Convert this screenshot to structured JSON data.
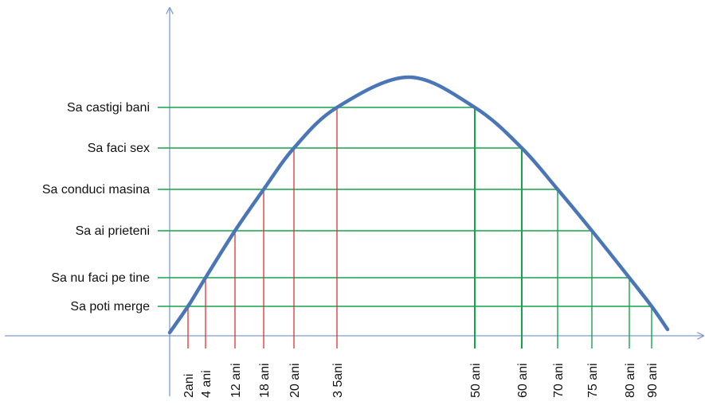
{
  "chart_data": {
    "type": "line",
    "title": "",
    "xlabel": "",
    "ylabel": "",
    "grid": false,
    "curve": {
      "color": "#4a76b8",
      "peak_age": 40
    },
    "colors": {
      "axis": "#7f9ccc",
      "horizontal": "#16a34a",
      "rising_marker": "#e03131",
      "falling_marker": "#16a34a"
    },
    "levels": [
      {
        "label": "Sa poti merge",
        "rising_age": 2,
        "rising_label": "2ani",
        "falling_age": 90,
        "falling_label": "90 ani"
      },
      {
        "label": "Sa nu faci pe tine",
        "rising_age": 4,
        "rising_label": "4 ani",
        "falling_age": 80,
        "falling_label": "80 ani"
      },
      {
        "label": "Sa ai prieteni",
        "rising_age": 12,
        "rising_label": "12 ani",
        "falling_age": 75,
        "falling_label": "75 ani"
      },
      {
        "label": "Sa conduci masina",
        "rising_age": 18,
        "rising_label": "18 ani",
        "falling_age": 70,
        "falling_label": "70 ani"
      },
      {
        "label": "Sa faci sex",
        "rising_age": 20,
        "rising_label": "20 ani",
        "falling_age": 60,
        "falling_label": "60 ani"
      },
      {
        "label": "Sa castigi bani",
        "rising_age": 35,
        "rising_label": "3 5ani",
        "falling_age": 50,
        "falling_label": "50 ani"
      }
    ]
  }
}
